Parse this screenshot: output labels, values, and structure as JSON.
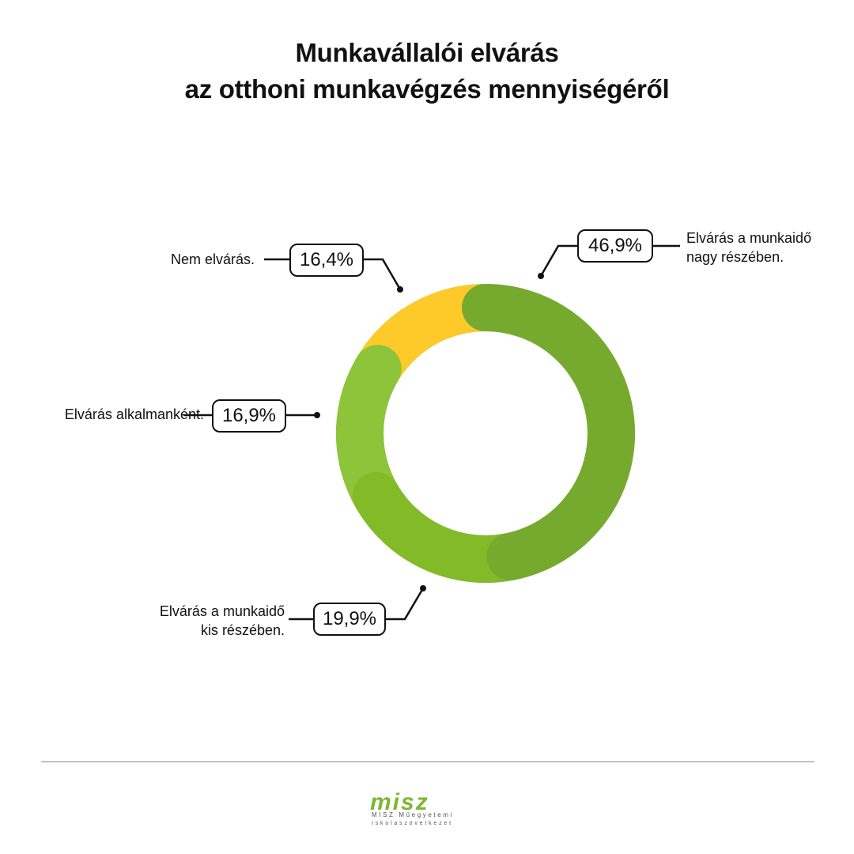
{
  "chart_data": {
    "type": "pie",
    "variant": "donut",
    "title": [
      "Munkavállalói elvárás",
      "az otthoni munkavégzés mennyiségéről"
    ],
    "categories": [
      "Elvárás a munkaidő nagy részében.",
      "Elvárás a munkaidő kis részében.",
      "Elvárás alkalmanként.",
      "Nem elvárás."
    ],
    "labels": [
      [
        "Elvárás a munkaidő",
        "nagy részében."
      ],
      [
        "Elvárás a munkaidő",
        "kis részében."
      ],
      [
        "Elvárás alkalmanként."
      ],
      [
        "Nem elvárás."
      ]
    ],
    "values": [
      46.9,
      19.9,
      16.9,
      16.4
    ],
    "value_labels": [
      "46,9%",
      "19,9%",
      "16,9%",
      "16,4%"
    ],
    "colors": [
      "#76aa2f",
      "#82bb27",
      "#8dc43a",
      "#fdca2a"
    ],
    "legend": "callouts"
  },
  "footer": {
    "logo_text": "misz",
    "logo_line1": "MISZ Műegyetemi",
    "logo_line2": "Iskolaszövetkezet"
  }
}
